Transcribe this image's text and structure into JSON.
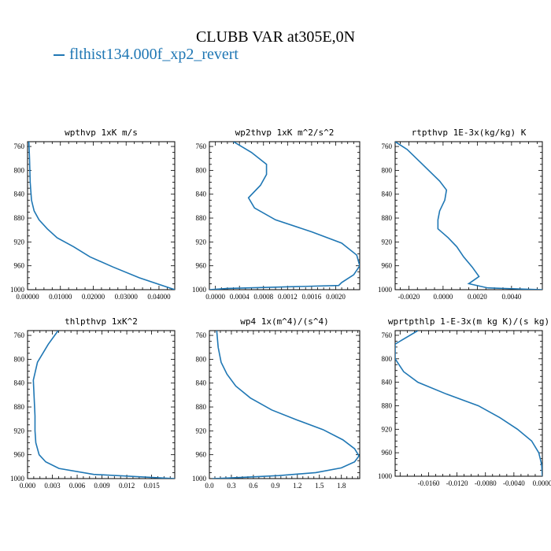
{
  "figure": {
    "title": "CLUBB VAR at305E,0N",
    "legend_label": "flthist134.000f_xp2_revert",
    "line_color": "#1f77b4"
  },
  "chart_data": [
    {
      "type": "line",
      "title": "wpthvp   1xK m/s",
      "xlim": [
        0.0,
        0.0448
      ],
      "ylim": [
        1000,
        752
      ],
      "x_ticks": [
        0.0,
        0.01,
        0.02,
        0.03,
        0.04
      ],
      "x_tick_labels": [
        "0.00000",
        "0.01000",
        "0.02000",
        "0.03000",
        "0.04000"
      ],
      "y_ticks": [
        760,
        800,
        840,
        880,
        920,
        960,
        1000
      ],
      "series": [
        {
          "x": [
            0.0004,
            0.0006,
            0.0008,
            0.0012,
            0.002,
            0.0035,
            0.006,
            0.009,
            0.014,
            0.019,
            0.026,
            0.034,
            0.0448
          ],
          "y": [
            752,
            780,
            820,
            850,
            868,
            883,
            898,
            913,
            928,
            945,
            962,
            980,
            1000
          ]
        }
      ]
    },
    {
      "type": "line",
      "title": "wp2thvp   1xK m^2/s^2",
      "xlim": [
        -0.0001,
        0.0024
      ],
      "ylim": [
        1000,
        752
      ],
      "x_ticks": [
        0.0,
        0.0004,
        0.0008,
        0.0012,
        0.0016,
        0.002
      ],
      "x_tick_labels": [
        "0.0000",
        "0.0004",
        "0.0008",
        "0.0012",
        "0.0016",
        "0.0020"
      ],
      "y_ticks": [
        760,
        800,
        840,
        880,
        920,
        960,
        1000
      ],
      "series": [
        {
          "x": [
            0.0003,
            0.0006,
            0.00085,
            0.00085,
            0.00075,
            0.00055,
            0.00065,
            0.001,
            0.0016,
            0.0021,
            0.00235,
            0.0024,
            0.0023,
            0.0021,
            0.00205,
            0.0002,
            -0.0001
          ],
          "y": [
            752,
            770,
            790,
            807,
            825,
            846,
            863,
            883,
            903,
            922,
            942,
            960,
            975,
            988,
            993,
            998,
            1000
          ]
        }
      ]
    },
    {
      "type": "line",
      "title": "rtpthvp   1E-3x(kg/kg) K",
      "xlim": [
        -0.0028,
        0.0058
      ],
      "ylim": [
        1000,
        752
      ],
      "x_ticks": [
        -0.002,
        0.0,
        0.002,
        0.004
      ],
      "x_tick_labels": [
        "-0.0020",
        "0.0000",
        "0.0020",
        "0.0040"
      ],
      "y_ticks": [
        760,
        800,
        840,
        880,
        920,
        960,
        1000
      ],
      "series": [
        {
          "x": [
            -0.0028,
            -0.0021,
            -0.0012,
            -0.0002,
            0.0002,
            0.0001,
            -0.0002,
            -0.0003,
            -0.0003,
            0.0003,
            0.0008,
            0.0012,
            0.0017,
            0.0021,
            0.0015,
            0.0026,
            0.0058
          ],
          "y": [
            752,
            765,
            790,
            818,
            833,
            850,
            868,
            883,
            898,
            913,
            928,
            945,
            962,
            978,
            990,
            997,
            1000
          ]
        }
      ]
    },
    {
      "type": "line",
      "title": "thlpthvp   1xK^2",
      "xlim": [
        0.0,
        0.0178
      ],
      "ylim": [
        1000,
        752
      ],
      "x_ticks": [
        0.0,
        0.003,
        0.006,
        0.009,
        0.012,
        0.015
      ],
      "x_tick_labels": [
        "0.000",
        "0.003",
        "0.006",
        "0.009",
        "0.012",
        "0.015"
      ],
      "y_ticks": [
        760,
        800,
        840,
        880,
        920,
        960,
        1000
      ],
      "series": [
        {
          "x": [
            0.0037,
            0.0025,
            0.0012,
            0.0007,
            0.0008,
            0.0009,
            0.0009,
            0.001,
            0.0014,
            0.0022,
            0.0038,
            0.008,
            0.0178
          ],
          "y": [
            752,
            775,
            805,
            835,
            865,
            895,
            920,
            940,
            960,
            972,
            983,
            993,
            1000
          ]
        }
      ]
    },
    {
      "type": "line",
      "title": "wp4   1x(m^4)/(s^4)",
      "xlim": [
        0.0,
        2.05
      ],
      "ylim": [
        1000,
        752
      ],
      "x_ticks": [
        0.0,
        0.3,
        0.6,
        0.9,
        1.2,
        1.5,
        1.8
      ],
      "x_tick_labels": [
        "0.0",
        "0.3",
        "0.6",
        "0.9",
        "1.2",
        "1.5",
        "1.8"
      ],
      "y_ticks": [
        760,
        800,
        840,
        880,
        920,
        960,
        1000
      ],
      "series": [
        {
          "x": [
            0.1,
            0.12,
            0.16,
            0.24,
            0.36,
            0.56,
            0.85,
            1.2,
            1.55,
            1.82,
            1.98,
            2.04,
            1.98,
            1.8,
            1.45,
            0.95,
            0.45,
            0.15,
            0.04
          ],
          "y": [
            752,
            780,
            805,
            825,
            845,
            865,
            885,
            902,
            918,
            935,
            950,
            962,
            972,
            982,
            990,
            995,
            998,
            999.5,
            1000
          ]
        }
      ]
    },
    {
      "type": "line",
      "title": "wprtpthlp   1-E-3x(m kg K)/(s kg)",
      "xlim": [
        -0.0207,
        0.0
      ],
      "ylim": [
        1000,
        752
      ],
      "x_ticks": [
        -0.016,
        -0.012,
        -0.008,
        -0.004,
        0.0
      ],
      "x_tick_labels": [
        "-0.0160",
        "-0.0120",
        "-0.0080",
        "-0.0040",
        "0.0000"
      ],
      "y_ticks": [
        760,
        800,
        840,
        880,
        920,
        960,
        1000
      ],
      "series": [
        {
          "x": [
            -0.0175,
            -0.0207,
            -0.0207,
            -0.0195,
            -0.0175,
            -0.0135,
            -0.009,
            -0.006,
            -0.0035,
            -0.0015,
            -0.0005,
            -0.0001,
            0.0
          ],
          "y": [
            752,
            775,
            800,
            822,
            840,
            860,
            880,
            900,
            920,
            940,
            960,
            980,
            1000
          ]
        }
      ]
    }
  ]
}
